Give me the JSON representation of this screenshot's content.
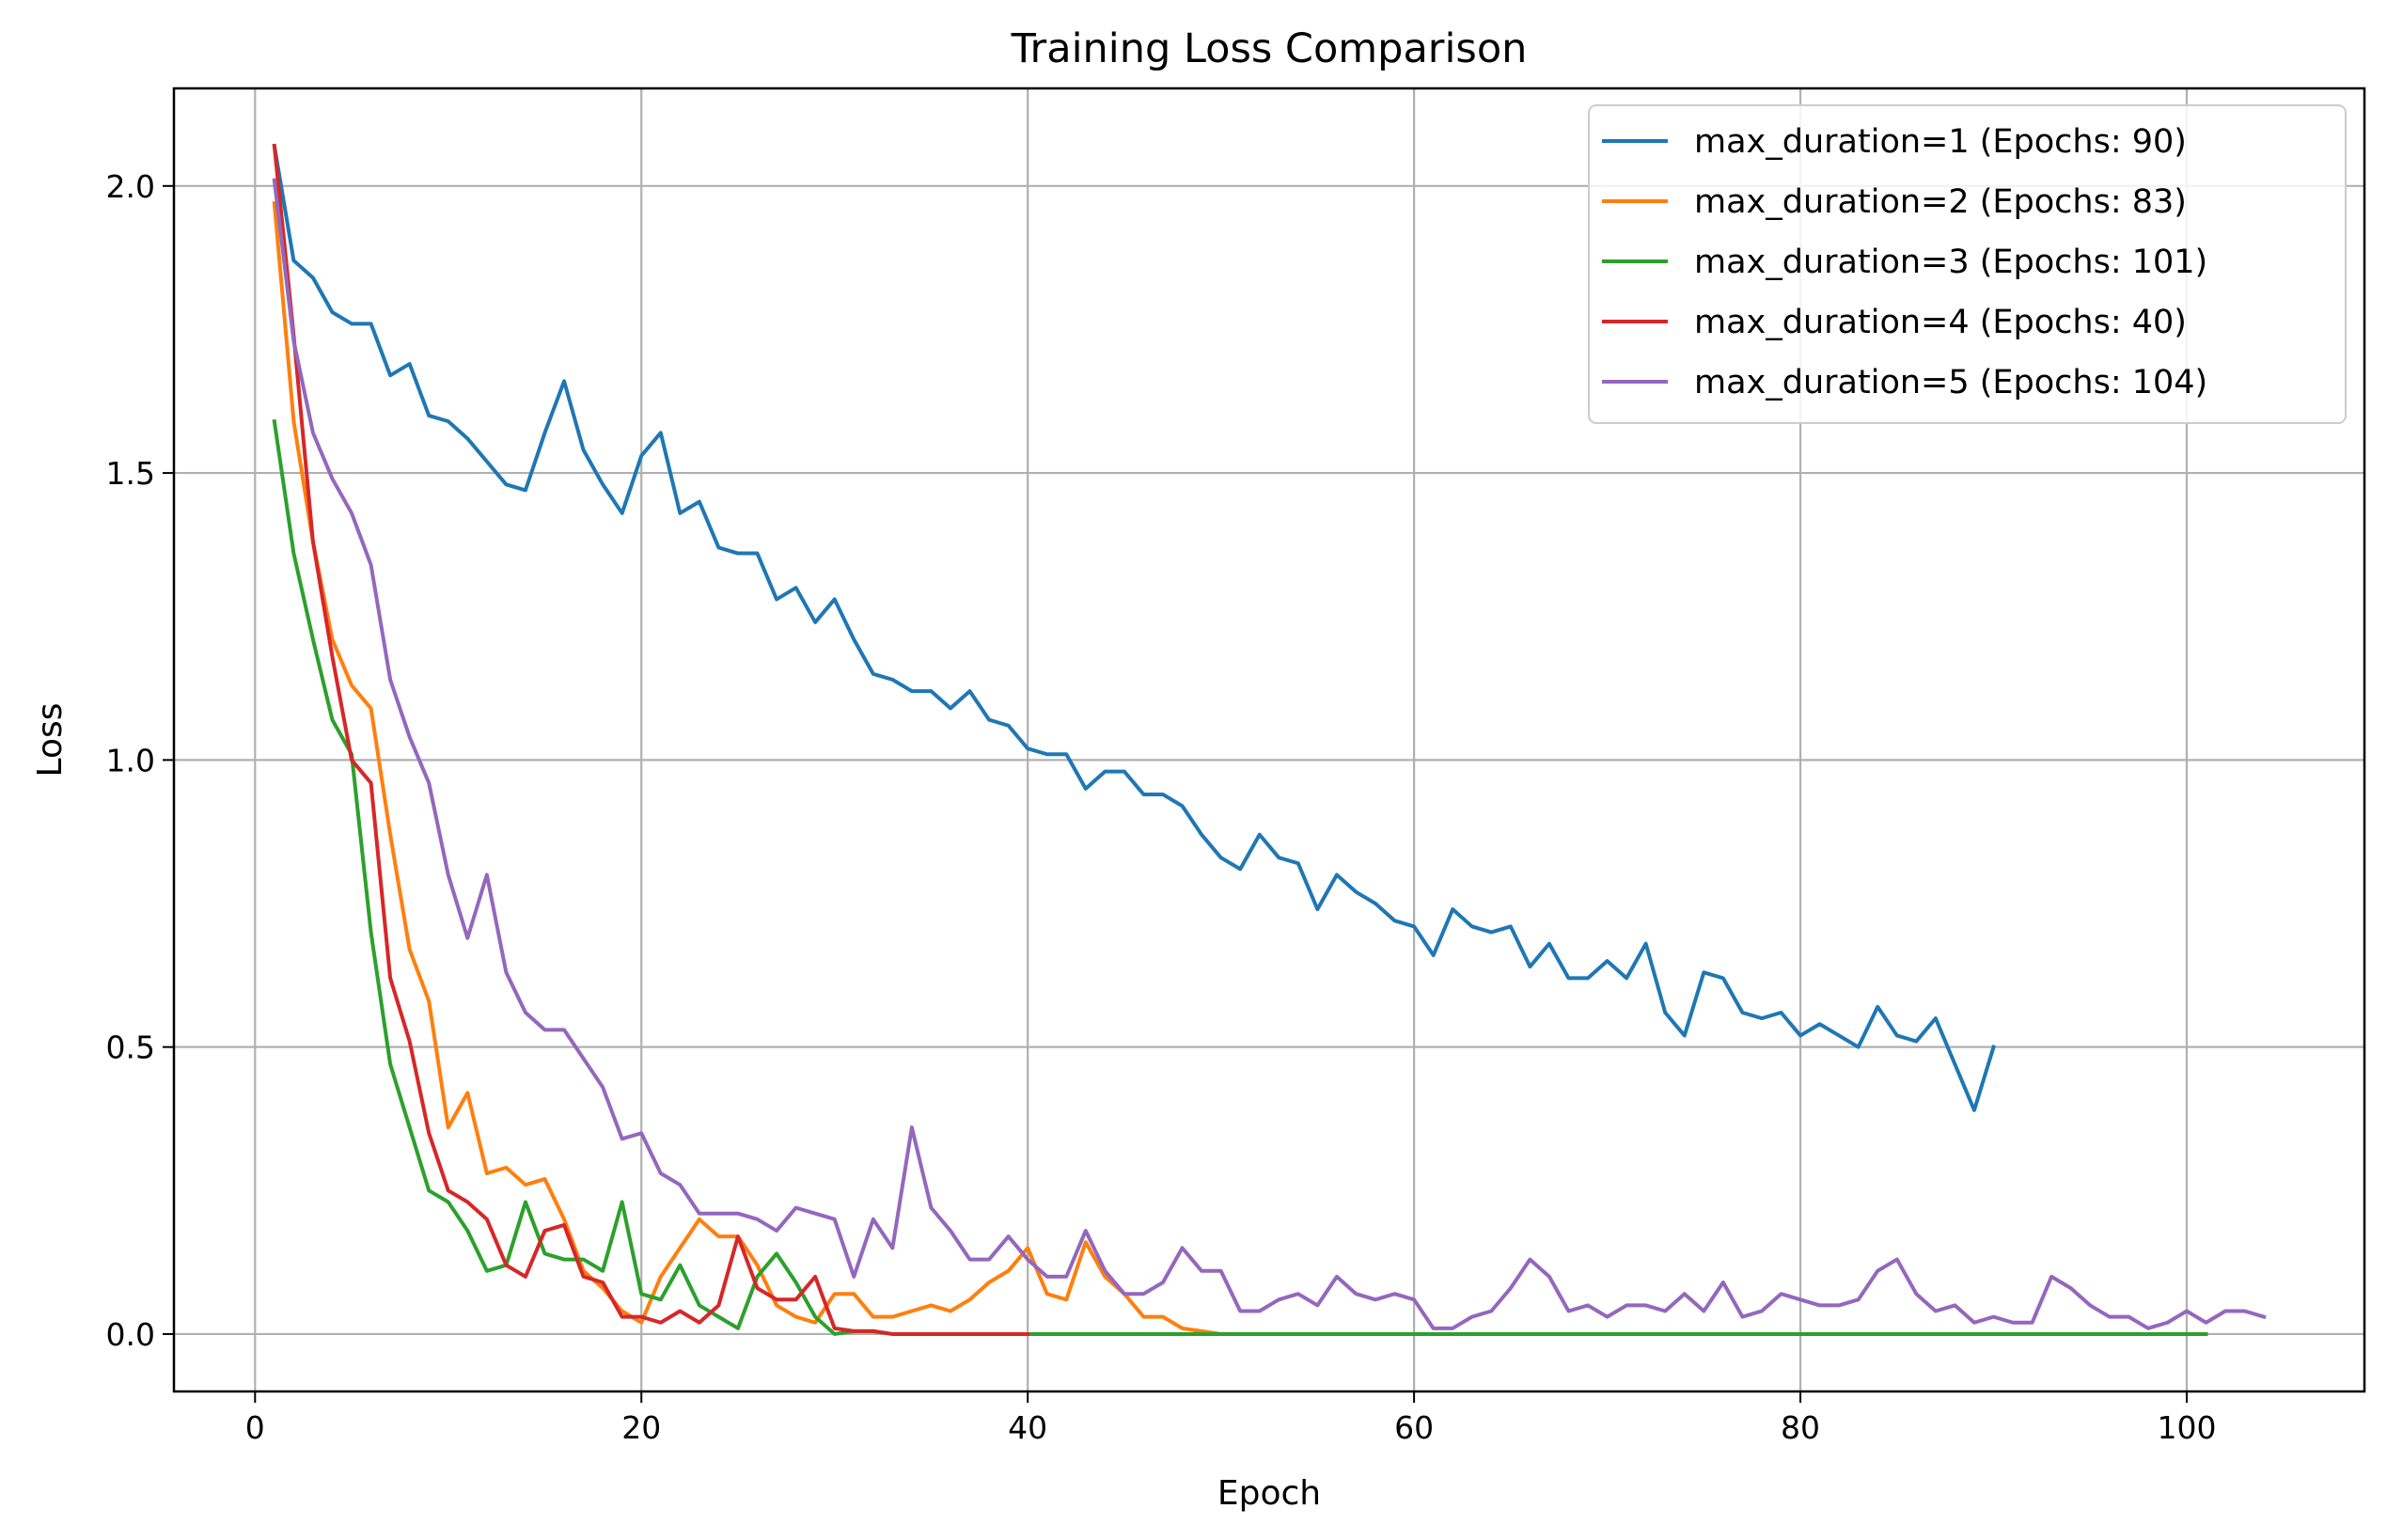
{
  "chart_data": {
    "type": "line",
    "title": "Training Loss Comparison",
    "xlabel": "Epoch",
    "ylabel": "Loss",
    "xlim": [
      -4.2,
      109.2
    ],
    "ylim": [
      -0.1,
      2.17
    ],
    "xticks": [
      0,
      20,
      40,
      60,
      80,
      100
    ],
    "yticks": [
      0.0,
      0.5,
      1.0,
      1.5,
      2.0
    ],
    "xtick_labels": [
      "0",
      "20",
      "40",
      "60",
      "80",
      "100"
    ],
    "ytick_labels": [
      "0.0",
      "0.5",
      "1.0",
      "1.5",
      "2.0"
    ],
    "grid": true,
    "legend_position": "top-right",
    "series": [
      {
        "name": "max_duration=1 (Epochs: 90)",
        "color": "#1f77b4",
        "x_start": 1,
        "values": [
          2.07,
          1.87,
          1.84,
          1.78,
          1.76,
          1.76,
          1.67,
          1.69,
          1.6,
          1.59,
          1.56,
          1.52,
          1.48,
          1.47,
          1.57,
          1.66,
          1.54,
          1.48,
          1.43,
          1.53,
          1.57,
          1.43,
          1.45,
          1.37,
          1.36,
          1.36,
          1.28,
          1.3,
          1.24,
          1.28,
          1.21,
          1.15,
          1.14,
          1.12,
          1.12,
          1.09,
          1.12,
          1.07,
          1.06,
          1.02,
          1.01,
          1.01,
          0.95,
          0.98,
          0.98,
          0.94,
          0.94,
          0.92,
          0.87,
          0.83,
          0.81,
          0.87,
          0.83,
          0.82,
          0.74,
          0.8,
          0.77,
          0.75,
          0.72,
          0.71,
          0.66,
          0.74,
          0.71,
          0.7,
          0.71,
          0.64,
          0.68,
          0.62,
          0.62,
          0.65,
          0.62,
          0.68,
          0.56,
          0.52,
          0.63,
          0.62,
          0.56,
          0.55,
          0.56,
          0.52,
          0.54,
          0.52,
          0.5,
          0.57,
          0.52,
          0.51,
          0.55,
          0.47,
          0.39,
          0.5
        ]
      },
      {
        "name": "max_duration=2 (Epochs: 83)",
        "color": "#ff7f0e",
        "x_start": 1,
        "values": [
          1.97,
          1.59,
          1.38,
          1.21,
          1.13,
          1.09,
          0.87,
          0.67,
          0.58,
          0.36,
          0.42,
          0.28,
          0.29,
          0.26,
          0.27,
          0.2,
          0.11,
          0.08,
          0.04,
          0.02,
          0.1,
          0.15,
          0.2,
          0.17,
          0.17,
          0.12,
          0.05,
          0.03,
          0.02,
          0.07,
          0.07,
          0.03,
          0.03,
          0.04,
          0.05,
          0.04,
          0.06,
          0.09,
          0.11,
          0.15,
          0.07,
          0.06,
          0.16,
          0.1,
          0.07,
          0.03,
          0.03,
          0.01,
          0.005,
          0.0,
          0.0,
          0.0,
          0.0,
          0.0,
          0.0,
          0.0,
          0.0,
          0.0,
          0.0,
          0.0,
          0.0,
          0.0,
          0.0,
          0.0,
          0.0,
          0.0,
          0.0,
          0.0,
          0.0,
          0.0,
          0.0,
          0.0,
          0.0,
          0.0,
          0.0,
          0.0,
          0.0,
          0.0,
          0.0,
          0.0,
          0.0,
          0.0,
          0.0
        ]
      },
      {
        "name": "max_duration=3 (Epochs: 101)",
        "color": "#2ca02c",
        "x_start": 1,
        "values": [
          1.59,
          1.36,
          1.21,
          1.07,
          1.01,
          0.7,
          0.47,
          0.36,
          0.25,
          0.23,
          0.18,
          0.11,
          0.12,
          0.23,
          0.14,
          0.13,
          0.13,
          0.11,
          0.23,
          0.07,
          0.06,
          0.12,
          0.05,
          0.03,
          0.01,
          0.1,
          0.14,
          0.09,
          0.03,
          0.0,
          0.005,
          0.005,
          0.0,
          0.0,
          0.0,
          0.0,
          0.0,
          0.0,
          0.0,
          0.0,
          0.0,
          0.0,
          0.0,
          0.0,
          0.0,
          0.0,
          0.0,
          0.0,
          0.0,
          0.0,
          0.0,
          0.0,
          0.0,
          0.0,
          0.0,
          0.0,
          0.0,
          0.0,
          0.0,
          0.0,
          0.0,
          0.0,
          0.0,
          0.0,
          0.0,
          0.0,
          0.0,
          0.0,
          0.0,
          0.0,
          0.0,
          0.0,
          0.0,
          0.0,
          0.0,
          0.0,
          0.0,
          0.0,
          0.0,
          0.0,
          0.0,
          0.0,
          0.0,
          0.0,
          0.0,
          0.0,
          0.0,
          0.0,
          0.0,
          0.0,
          0.0,
          0.0,
          0.0,
          0.0,
          0.0,
          0.0,
          0.0,
          0.0,
          0.0,
          0.0,
          0.0
        ]
      },
      {
        "name": "max_duration=4 (Epochs: 40)",
        "color": "#d62728",
        "x_start": 1,
        "values": [
          2.07,
          1.74,
          1.38,
          1.18,
          1.0,
          0.96,
          0.62,
          0.51,
          0.35,
          0.25,
          0.23,
          0.2,
          0.12,
          0.1,
          0.18,
          0.19,
          0.1,
          0.09,
          0.03,
          0.03,
          0.02,
          0.04,
          0.02,
          0.05,
          0.17,
          0.08,
          0.06,
          0.06,
          0.1,
          0.01,
          0.005,
          0.005,
          0.0,
          0.0,
          0.0,
          0.0,
          0.0,
          0.0,
          0.0,
          0.0
        ]
      },
      {
        "name": "max_duration=5 (Epochs: 104)",
        "color": "#9467bd",
        "x_start": 1,
        "values": [
          2.01,
          1.73,
          1.57,
          1.49,
          1.43,
          1.34,
          1.14,
          1.04,
          0.96,
          0.8,
          0.69,
          0.8,
          0.63,
          0.56,
          0.53,
          0.53,
          0.48,
          0.43,
          0.34,
          0.35,
          0.28,
          0.26,
          0.21,
          0.21,
          0.21,
          0.2,
          0.18,
          0.22,
          0.21,
          0.2,
          0.1,
          0.2,
          0.15,
          0.36,
          0.22,
          0.18,
          0.13,
          0.13,
          0.17,
          0.13,
          0.1,
          0.1,
          0.18,
          0.11,
          0.07,
          0.07,
          0.09,
          0.15,
          0.11,
          0.11,
          0.04,
          0.04,
          0.06,
          0.07,
          0.05,
          0.1,
          0.07,
          0.06,
          0.07,
          0.06,
          0.01,
          0.01,
          0.03,
          0.04,
          0.08,
          0.13,
          0.1,
          0.04,
          0.05,
          0.03,
          0.05,
          0.05,
          0.04,
          0.07,
          0.04,
          0.09,
          0.03,
          0.04,
          0.07,
          0.06,
          0.05,
          0.05,
          0.06,
          0.11,
          0.13,
          0.07,
          0.04,
          0.05,
          0.02,
          0.03,
          0.02,
          0.02,
          0.1,
          0.08,
          0.05,
          0.03,
          0.03,
          0.01,
          0.02,
          0.04,
          0.02,
          0.04,
          0.04,
          0.03
        ]
      }
    ]
  }
}
